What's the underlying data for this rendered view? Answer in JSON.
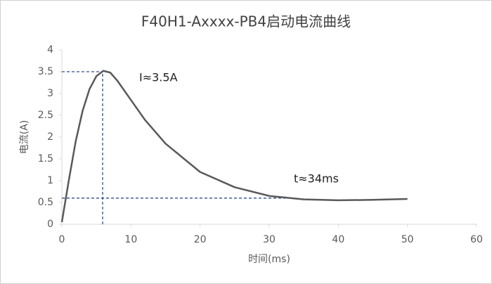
{
  "chart_data": {
    "type": "line",
    "title": "F40H1-Axxxx-PB4启动电流曲线",
    "x_label": "时间(ms)",
    "y_label": "电流(A)",
    "x": [
      0,
      1,
      2,
      3,
      4,
      5,
      6,
      7,
      8,
      10,
      12,
      15,
      20,
      25,
      30,
      35,
      40,
      45,
      50
    ],
    "series": [
      {
        "name": "电流",
        "color": "#595959",
        "values": [
          0.05,
          1.0,
          1.9,
          2.6,
          3.1,
          3.4,
          3.52,
          3.48,
          3.3,
          2.85,
          2.4,
          1.85,
          1.2,
          0.85,
          0.65,
          0.57,
          0.55,
          0.56,
          0.58
        ]
      }
    ],
    "xlim": [
      0,
      60
    ],
    "xticks": [
      0,
      10,
      20,
      30,
      40,
      50,
      60
    ],
    "ylim": [
      0,
      4
    ],
    "yticks": [
      0,
      0.5,
      1,
      1.5,
      2,
      2.5,
      3,
      3.5,
      4
    ],
    "grid": false,
    "guide_color": "#2f4f8f",
    "guides": [
      {
        "x": [
          0,
          5.9
        ],
        "y": [
          3.5,
          3.5
        ]
      },
      {
        "x": [
          5.9,
          5.9
        ],
        "y": [
          0,
          3.5
        ]
      },
      {
        "x": [
          0,
          33
        ],
        "y": [
          0.6,
          0.6
        ]
      }
    ],
    "annotations": [
      "I≈3.5A",
      "t≈34ms"
    ]
  }
}
